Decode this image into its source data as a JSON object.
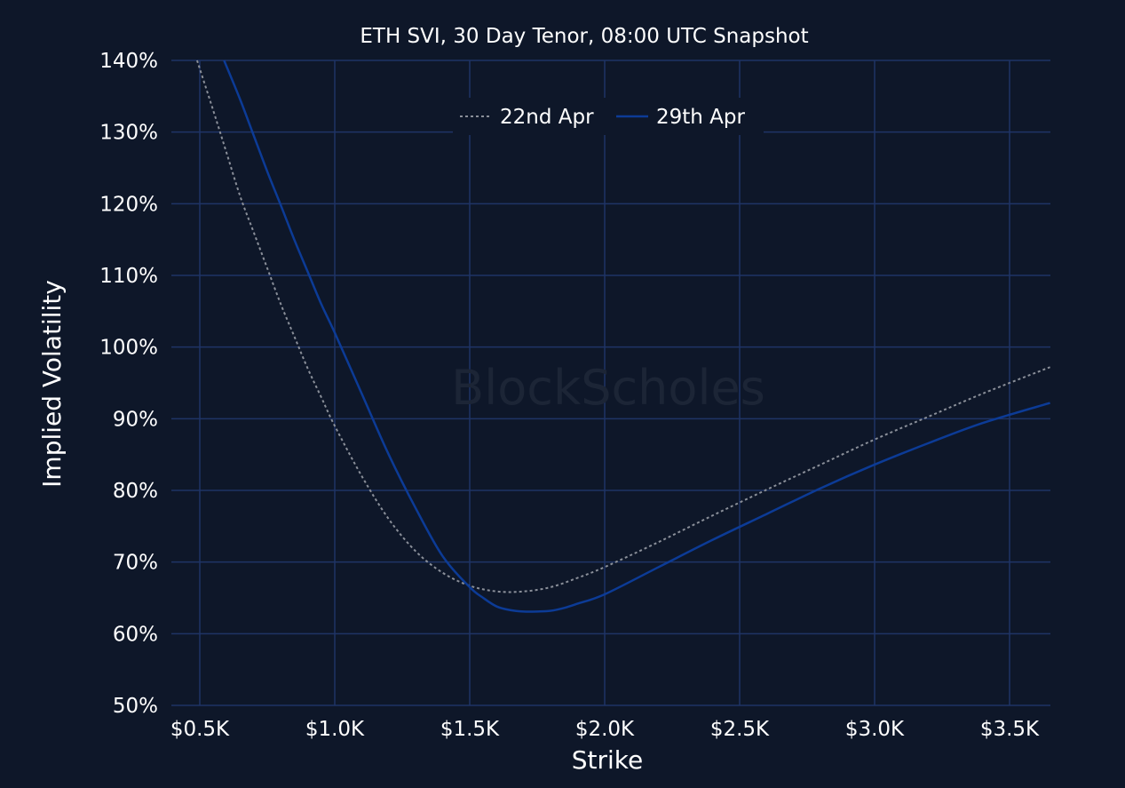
{
  "chart_data": {
    "type": "line",
    "title": "ETH SVI, 30 Day Tenor, 08:00 UTC Snapshot",
    "xlabel": "Strike",
    "ylabel": "Implied Volatility",
    "xlim": [
      500,
      3650
    ],
    "ylim": [
      50,
      140
    ],
    "x_ticks": [
      {
        "value": 500,
        "label": "$0.5K"
      },
      {
        "value": 1000,
        "label": "$1.0K"
      },
      {
        "value": 1500,
        "label": "$1.5K"
      },
      {
        "value": 2000,
        "label": "$2.0K"
      },
      {
        "value": 2500,
        "label": "$2.5K"
      },
      {
        "value": 3000,
        "label": "$3.0K"
      },
      {
        "value": 3500,
        "label": "$3.5K"
      }
    ],
    "y_ticks": [
      {
        "value": 50,
        "label": "50%"
      },
      {
        "value": 60,
        "label": "60%"
      },
      {
        "value": 70,
        "label": "70%"
      },
      {
        "value": 80,
        "label": "80%"
      },
      {
        "value": 90,
        "label": "90%"
      },
      {
        "value": 100,
        "label": "100%"
      },
      {
        "value": 110,
        "label": "110%"
      },
      {
        "value": 120,
        "label": "120%"
      },
      {
        "value": 130,
        "label": "130%"
      },
      {
        "value": 140,
        "label": "140%"
      }
    ],
    "grid": true,
    "legend_position": "top-center",
    "watermark": "BlockScholes",
    "series": [
      {
        "name": "22nd Apr",
        "color": "#8a8f99",
        "dash": "dotted",
        "x": [
          490,
          550,
          600,
          650,
          700,
          750,
          800,
          850,
          900,
          950,
          1000,
          1100,
          1200,
          1300,
          1400,
          1500,
          1600,
          1700,
          1800,
          1900,
          2000,
          2200,
          2400,
          2600,
          2800,
          3000,
          3200,
          3400,
          3650
        ],
        "y": [
          140,
          133,
          127,
          121,
          116,
          111,
          106,
          101.5,
          97,
          93,
          89,
          82,
          76,
          71.5,
          68.5,
          66.7,
          65.9,
          65.9,
          66.5,
          67.8,
          69.3,
          72.8,
          76.5,
          80.1,
          83.6,
          87.1,
          90.3,
          93.5,
          97.2
        ]
      },
      {
        "name": "29th Apr",
        "color": "#0c3b96",
        "dash": "solid",
        "x": [
          590,
          650,
          700,
          750,
          800,
          850,
          900,
          950,
          1000,
          1100,
          1200,
          1300,
          1400,
          1500,
          1550,
          1600,
          1650,
          1700,
          1750,
          1800,
          1850,
          1900,
          2000,
          2200,
          2400,
          2600,
          2800,
          3000,
          3200,
          3400,
          3650
        ],
        "y": [
          140,
          134.5,
          129.5,
          124.5,
          119.8,
          115,
          110.5,
          106,
          102,
          93.5,
          85,
          77.5,
          70.8,
          66.5,
          65,
          63.8,
          63.3,
          63.1,
          63.1,
          63.2,
          63.6,
          64.2,
          65.5,
          69.3,
          73.1,
          76.7,
          80.3,
          83.6,
          86.6,
          89.4,
          92.2
        ]
      }
    ]
  }
}
